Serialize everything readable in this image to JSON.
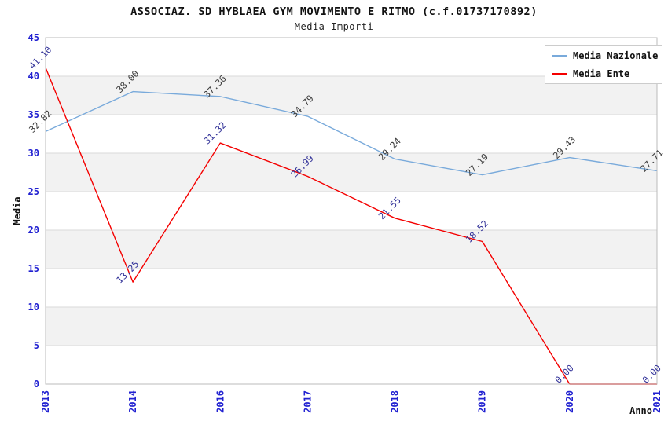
{
  "title": "ASSOCIAZ. SD HYBLAEA GYM MOVIMENTO E RITMO (c.f.01737170892)",
  "subtitle": "Media Importi",
  "legend": {
    "items": [
      {
        "label": "Media Nazionale",
        "color": "#79aadb"
      },
      {
        "label": "Media Ente",
        "color": "#f40000"
      }
    ]
  },
  "chart_data": {
    "type": "line",
    "categories": [
      "2013",
      "2014",
      "2016",
      "2017",
      "2018",
      "2019",
      "2020",
      "2021"
    ],
    "series": [
      {
        "name": "Media Nazionale",
        "color": "#79aadb",
        "label_color": "#3d3d3d",
        "values": [
          32.82,
          38.0,
          37.36,
          34.79,
          29.24,
          27.19,
          29.43,
          27.71
        ]
      },
      {
        "name": "Media Ente",
        "color": "#f40000",
        "label_color": "#333399",
        "values": [
          41.1,
          13.25,
          31.32,
          26.99,
          21.55,
          18.52,
          0.0,
          0.0
        ]
      }
    ],
    "title": "ASSOCIAZ. SD HYBLAEA GYM MOVIMENTO E RITMO (c.f.01737170892)",
    "subtitle": "Media Importi",
    "xlabel": "Anno",
    "ylabel": "Media",
    "ylim": [
      0,
      45
    ],
    "ytick_step": 5,
    "grid": true,
    "legend_position": "top-right",
    "colors": {
      "tick_label": "#2121d1",
      "band": "#f2f2f2",
      "gridline": "#d9d9d9",
      "border": "#bbbbbb",
      "axis_label": "#111111"
    }
  }
}
